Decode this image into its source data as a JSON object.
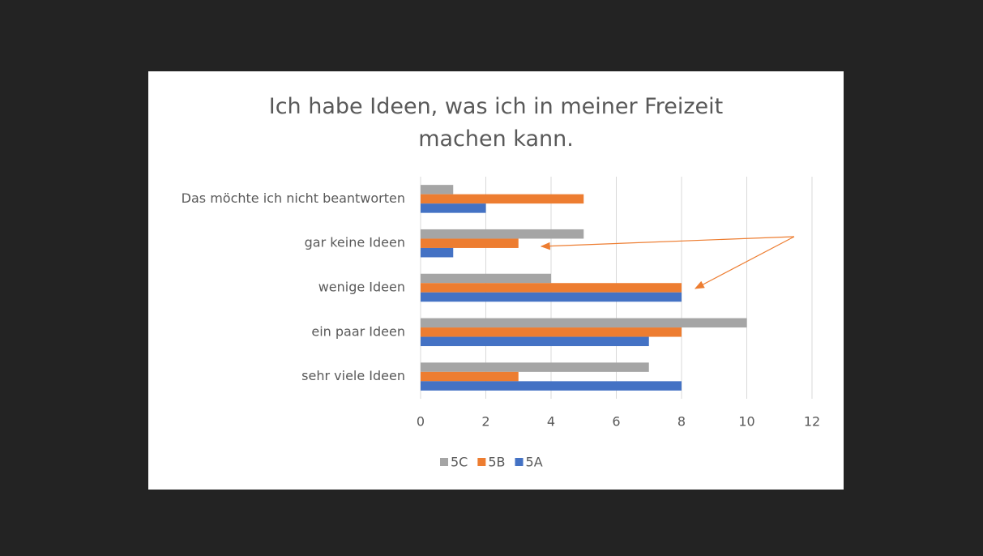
{
  "chart_data": {
    "type": "bar",
    "orientation": "horizontal",
    "title": "Ich habe Ideen, was ich in meiner Freizeit machen kann.",
    "categories": [
      "Das möchte ich nicht beantworten",
      "gar keine Ideen",
      "wenige Ideen",
      "ein paar Ideen",
      "sehr viele Ideen"
    ],
    "series": [
      {
        "name": "5C",
        "color": "#a5a5a5",
        "values": [
          1,
          5,
          4,
          10,
          7
        ]
      },
      {
        "name": "5B",
        "color": "#ed7d31",
        "values": [
          5,
          3,
          8,
          8,
          3
        ]
      },
      {
        "name": "5A",
        "color": "#4472c4",
        "values": [
          2,
          1,
          8,
          7,
          8
        ]
      }
    ],
    "xlim": [
      0,
      12
    ],
    "xticks": [
      0,
      2,
      4,
      6,
      8,
      10,
      12
    ],
    "grid": true,
    "legend": "bottom"
  }
}
